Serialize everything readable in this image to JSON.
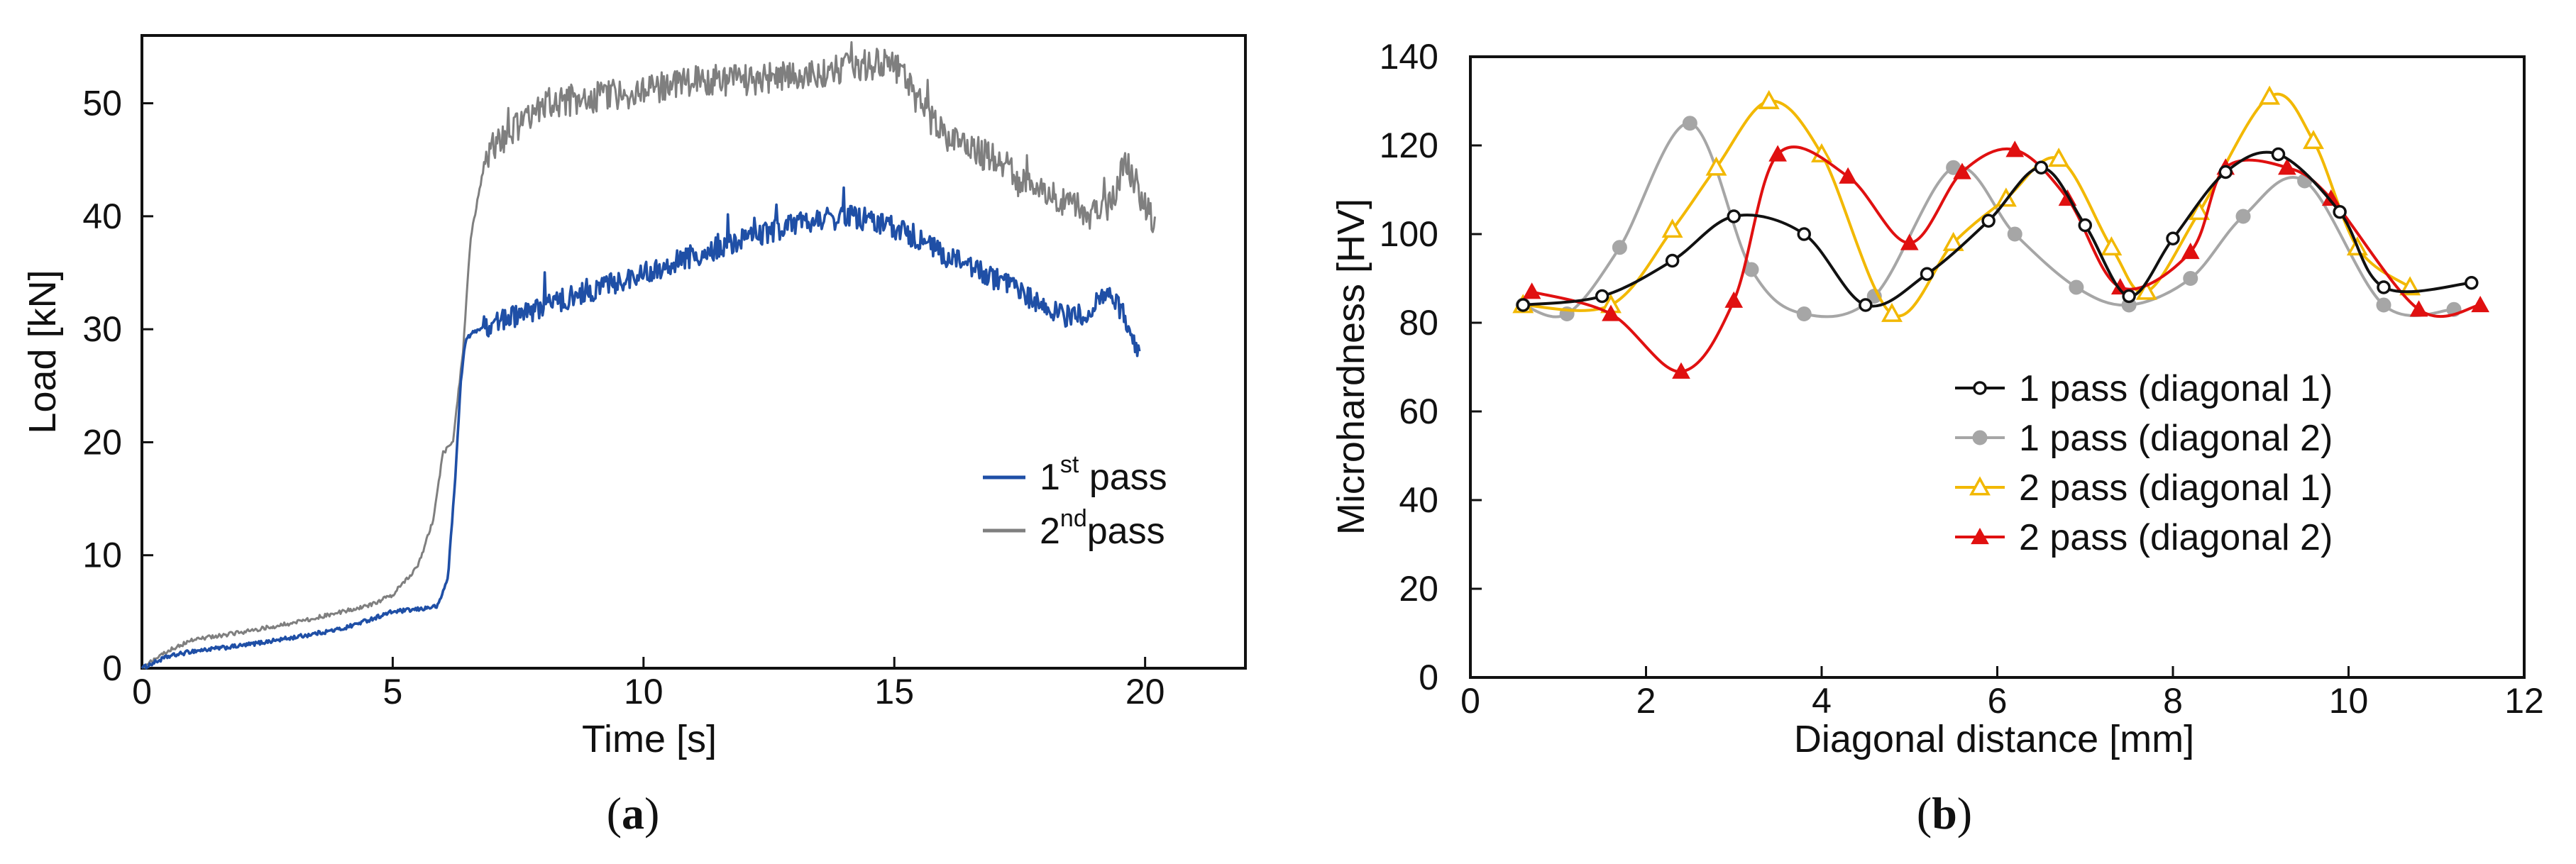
{
  "chart_data": [
    {
      "type": "line",
      "panel_label": "(a)",
      "panel_letter": "a",
      "xlabel": "Time [s]",
      "ylabel": "Load [kN]",
      "xlim": [
        0,
        22
      ],
      "ylim": [
        0,
        56
      ],
      "xticks": [
        0,
        5,
        10,
        15,
        20
      ],
      "yticks": [
        0,
        10,
        20,
        30,
        40,
        50
      ],
      "xtick_labels": [
        "0",
        "5",
        "10",
        "15",
        "20"
      ],
      "ytick_labels": [
        "0",
        "10",
        "20",
        "30",
        "40",
        "50"
      ],
      "legend_position": "center-right",
      "series": [
        {
          "name": "1st pass",
          "legend_base": "1",
          "legend_sup": "st",
          "legend_rest": " pass",
          "color": "#1f4fa6",
          "x": [
            0,
            0.5,
            1,
            2,
            3,
            4,
            5,
            5.5,
            5.9,
            6.1,
            6.25,
            6.35,
            6.45,
            6.55,
            6.7,
            7,
            8,
            9,
            10,
            11,
            12,
            13,
            13.5,
            14,
            14.5,
            15,
            15.5,
            16,
            17,
            18,
            18.5,
            19,
            19.3,
            19.6,
            19.9
          ],
          "y": [
            0,
            1,
            1.5,
            2,
            2.7,
            3.5,
            5,
            5.2,
            5.5,
            8,
            17,
            25,
            29,
            29.5,
            30,
            30.5,
            32,
            33.5,
            35,
            36.5,
            38,
            39.3,
            39.8,
            40,
            39.7,
            39,
            38,
            36.5,
            34.5,
            32,
            31,
            31.8,
            33.5,
            31,
            27.5
          ],
          "noise": 1.0
        },
        {
          "name": "2nd pass",
          "legend_base": "2",
          "legend_sup": "nd",
          "legend_rest": "pass",
          "color": "#7f7f7f",
          "x": [
            0,
            0.5,
            1,
            2,
            3,
            4,
            4.5,
            5,
            5.5,
            5.8,
            6,
            6.2,
            6.4,
            6.55,
            6.8,
            7,
            7.5,
            8,
            9,
            10,
            11,
            12,
            13,
            14,
            14.5,
            15,
            15.5,
            16,
            17,
            18,
            19,
            19.3,
            19.6,
            19.8,
            20.2
          ],
          "y": [
            0,
            1.5,
            2.5,
            3.2,
            4,
            5,
            5.5,
            6.5,
            9,
            13,
            19,
            20,
            28,
            38,
            44,
            46,
            48,
            50,
            50.5,
            51,
            52,
            52,
            52.5,
            53,
            53.5,
            53.5,
            50,
            47,
            45,
            42,
            40,
            41,
            45,
            43,
            39
          ],
          "noise": 1.4
        }
      ]
    },
    {
      "type": "line",
      "panel_label": "(b)",
      "panel_letter": "b",
      "xlabel": "Diagonal distance [mm]",
      "ylabel": "Microhardness [HV]",
      "xlim": [
        0,
        12
      ],
      "ylim": [
        0,
        140
      ],
      "xticks": [
        0,
        2,
        4,
        6,
        8,
        10,
        12
      ],
      "yticks": [
        0,
        20,
        40,
        60,
        80,
        100,
        120,
        140
      ],
      "xtick_labels": [
        "0",
        "2",
        "4",
        "6",
        "8",
        "10",
        "12"
      ],
      "ytick_labels": [
        "0",
        "20",
        "40",
        "60",
        "80",
        "100",
        "120",
        "140"
      ],
      "legend_position": "lower-right",
      "series": [
        {
          "name": "1 pass (diagonal 1)",
          "color": "#111111",
          "marker": "open-circle",
          "x": [
            0.6,
            1.5,
            2.3,
            3.0,
            3.8,
            4.5,
            5.2,
            5.9,
            6.5,
            7.0,
            7.5,
            8.0,
            8.6,
            9.2,
            9.9,
            10.4,
            11.4
          ],
          "y": [
            84,
            86,
            94,
            104,
            100,
            84,
            91,
            103,
            115,
            102,
            86,
            99,
            114,
            118,
            105,
            88,
            89
          ]
        },
        {
          "name": "1 pass (diagonal 2)",
          "color": "#a6a6a6",
          "marker": "filled-circle",
          "x": [
            0.6,
            1.1,
            1.7,
            2.5,
            3.2,
            3.8,
            4.6,
            5.5,
            6.2,
            6.9,
            7.5,
            8.2,
            8.8,
            9.5,
            10.4,
            11.2
          ],
          "y": [
            84,
            82,
            97,
            125,
            92,
            82,
            86,
            115,
            100,
            88,
            84,
            90,
            104,
            112,
            84,
            83
          ]
        },
        {
          "name": "2 pass (diagonal 1)",
          "color": "#f2b800",
          "marker": "open-triangle",
          "x": [
            0.6,
            1.6,
            2.3,
            2.8,
            3.4,
            4.0,
            4.8,
            5.5,
            6.1,
            6.7,
            7.3,
            7.7,
            8.3,
            9.1,
            9.6,
            10.1,
            10.7
          ],
          "y": [
            84,
            84,
            101,
            115,
            130,
            118,
            82,
            98,
            108,
            117,
            97,
            87,
            105,
            131,
            121,
            97,
            88
          ]
        },
        {
          "name": "2 pass (diagonal 2)",
          "color": "#e01010",
          "marker": "filled-triangle",
          "x": [
            0.7,
            1.6,
            2.4,
            3.0,
            3.5,
            4.3,
            5.0,
            5.6,
            6.2,
            6.8,
            7.4,
            8.2,
            8.6,
            9.3,
            9.8,
            10.8,
            11.5
          ],
          "y": [
            87,
            82,
            69,
            85,
            118,
            113,
            98,
            114,
            119,
            108,
            88,
            96,
            115,
            115,
            108,
            83,
            84
          ]
        }
      ]
    }
  ]
}
